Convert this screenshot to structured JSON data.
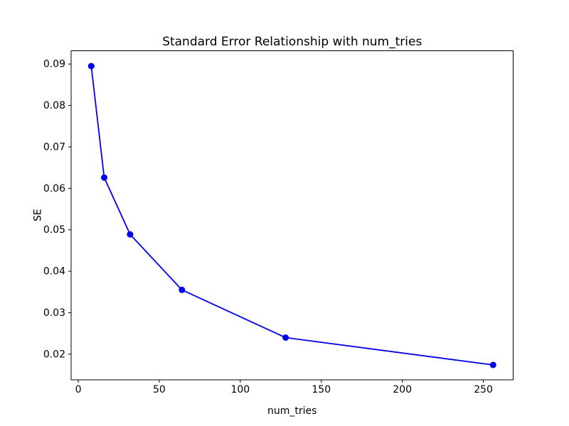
{
  "window": {
    "background": "#ffffff"
  },
  "chart_data": {
    "type": "line",
    "title": "Standard Error Relationship with num_tries",
    "xlabel": "num_tries",
    "ylabel": "SE",
    "series": [
      {
        "name": "SE",
        "x": [
          8,
          16,
          32,
          64,
          128,
          256
        ],
        "y": [
          0.0895,
          0.0626,
          0.0489,
          0.0355,
          0.024,
          0.0174
        ],
        "color": "#0000f0",
        "marker": "circle"
      }
    ],
    "xlim": [
      -4.4,
      268.4
    ],
    "ylim": [
      0.0138,
      0.0932
    ],
    "x_ticks": [
      0,
      50,
      100,
      150,
      200,
      250
    ],
    "x_tick_labels": [
      "0",
      "50",
      "100",
      "150",
      "200",
      "250"
    ],
    "y_ticks": [
      0.02,
      0.03,
      0.04,
      0.05,
      0.06,
      0.07,
      0.08,
      0.09
    ],
    "y_tick_labels": [
      "0.02",
      "0.03",
      "0.04",
      "0.05",
      "0.06",
      "0.07",
      "0.08",
      "0.09"
    ],
    "grid": false,
    "legend_position": "none",
    "spines": "box",
    "axes_background": "#ffffff",
    "spine_color": "#000000",
    "tick_color": "#000000"
  }
}
